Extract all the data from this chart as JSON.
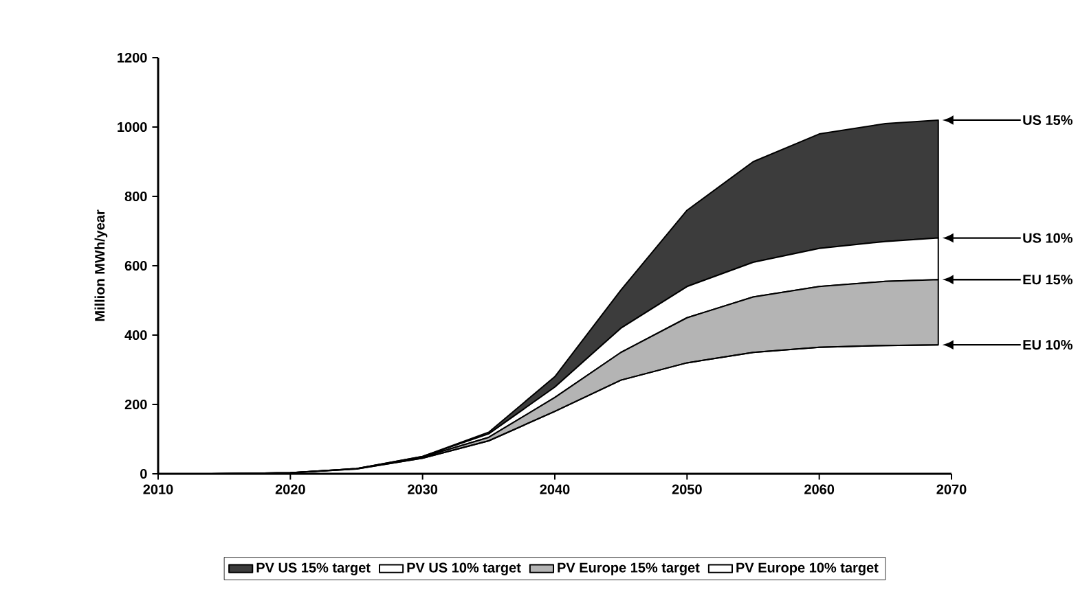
{
  "chart_data": {
    "type": "area",
    "ylabel": "Million MWh/year",
    "x": [
      2014,
      2020,
      2025,
      2030,
      2035,
      2040,
      2045,
      2050,
      2055,
      2060,
      2065,
      2069
    ],
    "series": [
      {
        "name": "PV US 15% target",
        "color": "#3c3c3c",
        "values": [
          0,
          3,
          15,
          50,
          120,
          280,
          530,
          760,
          900,
          980,
          1010,
          1020
        ]
      },
      {
        "name": "PV US 10% target",
        "color": "#ffffff",
        "values": [
          0,
          3,
          15,
          50,
          115,
          250,
          420,
          540,
          610,
          650,
          670,
          680
        ]
      },
      {
        "name": "PV Europe 15% target",
        "color": "#b4b4b4",
        "values": [
          0,
          3,
          15,
          48,
          105,
          220,
          350,
          450,
          510,
          540,
          555,
          560
        ]
      },
      {
        "name": "PV Europe 10% target",
        "type": "line",
        "color": "#000000",
        "values": [
          0,
          3,
          14,
          45,
          95,
          180,
          270,
          320,
          350,
          365,
          370,
          372
        ]
      }
    ],
    "xlim": [
      2010,
      2070
    ],
    "xticks": [
      2010,
      2020,
      2030,
      2040,
      2050,
      2060,
      2070
    ],
    "ylim": [
      0,
      1200
    ],
    "yticks": [
      0,
      200,
      400,
      600,
      800,
      1000,
      1200
    ],
    "legend": "bottom",
    "grid": false,
    "annotations": [
      "US 15%",
      "US 10%",
      "EU 15%",
      "EU 10%"
    ]
  }
}
